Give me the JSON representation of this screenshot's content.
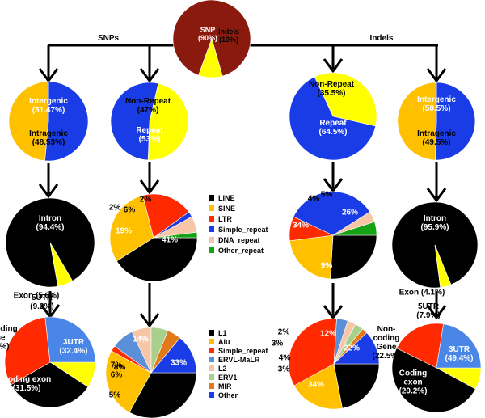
{
  "section_labels": {
    "snps": "SNPs",
    "indels": "Indels"
  },
  "legend1": [
    {
      "name": "LINE",
      "color": "#000000"
    },
    {
      "name": "SINE",
      "color": "#ffc000"
    },
    {
      "name": "LTR",
      "color": "#ff2a00"
    },
    {
      "name": "Simple_repeat",
      "color": "#1a3ce6"
    },
    {
      "name": "DNA_repeat",
      "color": "#f7c6a6"
    },
    {
      "name": "Other_repeat",
      "color": "#15a315"
    }
  ],
  "legend2": [
    {
      "name": "L1",
      "color": "#000000"
    },
    {
      "name": "Alu",
      "color": "#ffc000"
    },
    {
      "name": "Simple_repeat",
      "color": "#ff2a00"
    },
    {
      "name": "ERVL-MaLR",
      "color": "#5b8fd8"
    },
    {
      "name": "L2",
      "color": "#f7c6a6"
    },
    {
      "name": "ERV1",
      "color": "#a8d08c"
    },
    {
      "name": "MIR",
      "color": "#e07a1a"
    },
    {
      "name": "Other",
      "color": "#1a3ce6"
    }
  ],
  "chart_data": [
    {
      "type": "pie",
      "id": "top",
      "slices": [
        {
          "name": "SNP",
          "value": 90,
          "color": "#8b1a0e",
          "label": [
            "SNP",
            "(90%)"
          ],
          "labelColor": "#ffffff"
        },
        {
          "name": "Indels",
          "value": 10,
          "color": "#ffff00",
          "label": [
            "Indels",
            "(10%)"
          ],
          "labelColor": "#000000"
        }
      ]
    },
    {
      "type": "pie",
      "id": "snp-location",
      "slices": [
        {
          "name": "Intergenic",
          "value": 51.47,
          "color": "#1a3ce6",
          "label": [
            "Intergenic",
            "(51.47%)"
          ],
          "labelColor": "#ffffff"
        },
        {
          "name": "Intragenic",
          "value": 48.53,
          "color": "#ffc000",
          "label": [
            "Intragenic",
            "(48.53%)"
          ],
          "labelColor": "#000000"
        }
      ]
    },
    {
      "type": "pie",
      "id": "snp-repeat",
      "slices": [
        {
          "name": "Non-Repeat",
          "value": 47,
          "color": "#ffff00",
          "label": [
            "Non-Repeat",
            "(47%)"
          ],
          "labelColor": "#000000"
        },
        {
          "name": "Repeat",
          "value": 53,
          "color": "#1a3ce6",
          "label": [
            "Repeat",
            "(53%)"
          ],
          "labelColor": "#ffffff"
        }
      ]
    },
    {
      "type": "pie",
      "id": "indel-repeat",
      "slices": [
        {
          "name": "Non-Repeat",
          "value": 35.5,
          "color": "#ffff00",
          "label": [
            "Non-Repeat",
            "(35.5%)"
          ],
          "labelColor": "#000000"
        },
        {
          "name": "Repeat",
          "value": 64.5,
          "color": "#1a3ce6",
          "label": [
            "Repeat",
            "(64.5%)"
          ],
          "labelColor": "#ffffff"
        }
      ]
    },
    {
      "type": "pie",
      "id": "indel-location",
      "slices": [
        {
          "name": "Intergenic",
          "value": 50.5,
          "color": "#1a3ce6",
          "label": [
            "Intergenic",
            "(50.5%)"
          ],
          "labelColor": "#ffffff"
        },
        {
          "name": "Intragenic",
          "value": 49.5,
          "color": "#ffc000",
          "label": [
            "Intragenic",
            "(49.5%)"
          ],
          "labelColor": "#000000"
        }
      ]
    },
    {
      "type": "pie",
      "id": "snp-intron",
      "slices": [
        {
          "name": "Intron",
          "value": 94.4,
          "color": "#000000",
          "label": [
            "Intron",
            "(94.4%)"
          ],
          "labelColor": "#ffffff"
        },
        {
          "name": "Exon",
          "value": 5.6,
          "color": "#ffff00",
          "label": [
            "Exon (5.6%)"
          ],
          "labelColor": "#000000"
        }
      ]
    },
    {
      "type": "pie",
      "id": "snp-repeat-class",
      "slices": [
        {
          "name": "LINE",
          "value": 41,
          "color": "#000000",
          "label": [
            "41%"
          ],
          "labelColor": "#ffffff"
        },
        {
          "name": "SINE",
          "value": 30,
          "color": "#ffc000",
          "label": [
            "30%"
          ],
          "labelColor": "#000000"
        },
        {
          "name": "LTR",
          "value": 19,
          "color": "#ff2a00",
          "label": [
            "19%"
          ],
          "labelColor": "#ffffff"
        },
        {
          "name": "Simple_repeat",
          "value": 2,
          "color": "#1a3ce6",
          "label": [
            "2%"
          ],
          "labelColor": "#000000"
        },
        {
          "name": "DNA_repeat",
          "value": 6,
          "color": "#f7c6a6",
          "label": [
            "6%"
          ],
          "labelColor": "#000000"
        },
        {
          "name": "Other_repeat",
          "value": 2,
          "color": "#15a315",
          "label": [
            "2%"
          ],
          "labelColor": "#000000"
        }
      ]
    },
    {
      "type": "pie",
      "id": "indel-repeat-class",
      "slices": [
        {
          "name": "LINE",
          "value": 26,
          "color": "#000000",
          "label": [
            "26%"
          ],
          "labelColor": "#ffffff"
        },
        {
          "name": "SINE",
          "value": 22,
          "color": "#ffc000",
          "label": [
            "22%"
          ],
          "labelColor": "#000000"
        },
        {
          "name": "LTR",
          "value": 9,
          "color": "#ff2a00",
          "label": [
            "9%"
          ],
          "labelColor": "#ffffff"
        },
        {
          "name": "Simple_repeat",
          "value": 34,
          "color": "#1a3ce6",
          "label": [
            "34%"
          ],
          "labelColor": "#ffffff"
        },
        {
          "name": "DNA_repeat",
          "value": 4,
          "color": "#f7c6a6",
          "label": [
            "4%"
          ],
          "labelColor": "#000000"
        },
        {
          "name": "Other_repeat",
          "value": 5,
          "color": "#15a315",
          "label": [
            "5%"
          ],
          "labelColor": "#000000"
        }
      ]
    },
    {
      "type": "pie",
      "id": "indel-intron",
      "slices": [
        {
          "name": "Intron",
          "value": 95.9,
          "color": "#000000",
          "label": [
            "Intron",
            "(95.9%)"
          ],
          "labelColor": "#ffffff"
        },
        {
          "name": "Exon",
          "value": 4.1,
          "color": "#ffff00",
          "label": [
            "Exon (4.1%)"
          ],
          "labelColor": "#000000"
        }
      ]
    },
    {
      "type": "pie",
      "id": "snp-exon",
      "slices": [
        {
          "name": "5UTR",
          "value": 9.2,
          "color": "#ffff00",
          "label": [
            "5UTR",
            "(9.2%)"
          ],
          "labelColor": "#000000"
        },
        {
          "name": "3UTR",
          "value": 32.4,
          "color": "#000000",
          "label": [
            "3UTR",
            "(32.4%)"
          ],
          "labelColor": "#ffffff"
        },
        {
          "name": "Coding exon",
          "value": 31.5,
          "color": "#ff2a00",
          "label": [
            "Coding exon",
            "(31.5%)"
          ],
          "labelColor": "#ffffff"
        },
        {
          "name": "Non-coding Gene",
          "value": 26.7,
          "color": "#4a86e8",
          "label": [
            "Non-coding",
            "Gene",
            "(26.7%)"
          ],
          "labelColor": "#000000"
        }
      ]
    },
    {
      "type": "pie",
      "id": "snp-repeat-family",
      "slices": [
        {
          "name": "L1",
          "value": 33,
          "color": "#000000",
          "label": [
            "33%"
          ],
          "labelColor": "#ffffff"
        },
        {
          "name": "Alu",
          "value": 25,
          "color": "#ffc000",
          "label": [
            "25%"
          ],
          "labelColor": "#000000"
        },
        {
          "name": "Simple_repeat",
          "value": 2,
          "color": "#ff2a00",
          "label": [
            "2%"
          ],
          "labelColor": "#000000"
        },
        {
          "name": "ERVL-MaLR",
          "value": 8,
          "color": "#5b8fd8",
          "label": [
            "8%"
          ],
          "labelColor": "#000000"
        },
        {
          "name": "L2",
          "value": 7,
          "color": "#f7c6a6",
          "label": [
            "7%"
          ],
          "labelColor": "#000000"
        },
        {
          "name": "ERV1",
          "value": 6,
          "color": "#a8d08c",
          "label": [
            "6%"
          ],
          "labelColor": "#000000"
        },
        {
          "name": "MIR",
          "value": 5,
          "color": "#e07a1a",
          "label": [
            "5%"
          ],
          "labelColor": "#000000"
        },
        {
          "name": "Other",
          "value": 14,
          "color": "#1a3ce6",
          "label": [
            "14%"
          ],
          "labelColor": "#ffffff"
        }
      ]
    },
    {
      "type": "pie",
      "id": "indel-repeat-family",
      "slices": [
        {
          "name": "L1",
          "value": 22,
          "color": "#000000",
          "label": [
            "22%"
          ],
          "labelColor": "#ffffff"
        },
        {
          "name": "Alu",
          "value": 20,
          "color": "#ffc000",
          "label": [
            "20%"
          ],
          "labelColor": "#000000"
        },
        {
          "name": "Simple_repeat",
          "value": 34,
          "color": "#ff2a00",
          "label": [
            "34%"
          ],
          "labelColor": "#ffffff"
        },
        {
          "name": "ERVL-MaLR",
          "value": 4,
          "color": "#5b8fd8",
          "label": [
            "4%"
          ],
          "labelColor": "#000000"
        },
        {
          "name": "L2",
          "value": 3,
          "color": "#f7c6a6",
          "label": [
            "3%"
          ],
          "labelColor": "#000000"
        },
        {
          "name": "ERV1",
          "value": 3,
          "color": "#a8d08c",
          "label": [
            "3%"
          ],
          "labelColor": "#000000"
        },
        {
          "name": "MIR",
          "value": 2,
          "color": "#e07a1a",
          "label": [
            "2%"
          ],
          "labelColor": "#000000"
        },
        {
          "name": "Other",
          "value": 12,
          "color": "#1a3ce6",
          "label": [
            "12%"
          ],
          "labelColor": "#ffffff"
        }
      ]
    },
    {
      "type": "pie",
      "id": "indel-exon",
      "slices": [
        {
          "name": "5UTR",
          "value": 7.9,
          "color": "#ffff00",
          "label": [
            "5UTR",
            "(7.9%)"
          ],
          "labelColor": "#000000"
        },
        {
          "name": "3UTR",
          "value": 49.4,
          "color": "#000000",
          "label": [
            "3UTR",
            "(49.4%)"
          ],
          "labelColor": "#ffffff"
        },
        {
          "name": "Coding exon",
          "value": 20.2,
          "color": "#ff2a00",
          "label": [
            "Coding",
            "exon",
            "(20.2%)"
          ],
          "labelColor": "#ffffff"
        },
        {
          "name": "Non-coding Gene",
          "value": 22.5,
          "color": "#4a86e8",
          "label": [
            "Non-",
            "coding",
            "Gene",
            "(22.5%)"
          ],
          "labelColor": "#000000"
        }
      ]
    }
  ]
}
